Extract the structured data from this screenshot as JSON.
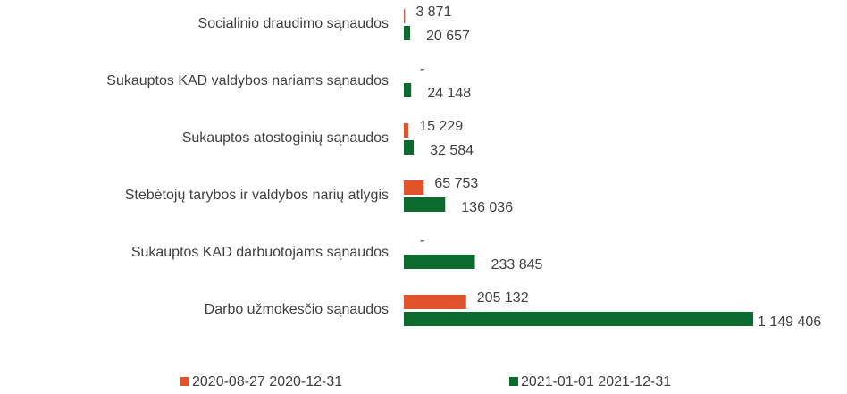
{
  "chart_data": {
    "type": "barh",
    "categories": [
      "Socialinio draudimo sąnaudos",
      "Sukauptos KAD valdybos nariams sąnaudos",
      "Sukauptos atostoginių sąnaudos",
      "Stebėtojų tarybos ir valdybos narių atlygis",
      "Sukauptos KAD darbuotojams sąnaudos",
      "Darbo užmokesčio sąnaudos"
    ],
    "series": [
      {
        "name": "2020-08-27 2020-12-31",
        "color": "#e0532b",
        "values": [
          3871,
          null,
          15229,
          65753,
          null,
          205132
        ],
        "value_labels": [
          "3 871",
          "-",
          "15 229",
          "65 753",
          "-",
          "205 132"
        ]
      },
      {
        "name": "2021-01-01 2021-12-31",
        "color": "#0b6b2e",
        "values": [
          20657,
          24148,
          32584,
          136036,
          233845,
          1149406
        ],
        "value_labels": [
          "20 657",
          "24 148",
          "32 584",
          "136 036",
          "233 845",
          "1 149 406"
        ]
      }
    ]
  }
}
